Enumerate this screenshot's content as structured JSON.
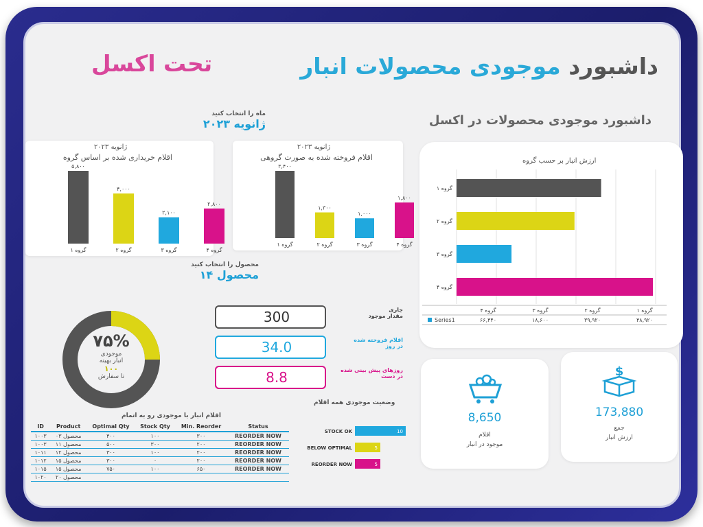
{
  "header": {
    "title_part1": "داشبورد",
    "title_part2": "موجودی محصولات انبار",
    "subtitle": "تحت اکسل",
    "right_heading": "داشبورد موجودی محصولات در اکسل"
  },
  "month_select": {
    "label": "ماه را انتخاب کنید",
    "value": "ژانویه ۲۰۲۳"
  },
  "product_select": {
    "label": "محصول را انتخاب کنید",
    "value": "محصول ۱۴"
  },
  "colors": {
    "dark": "#545454",
    "yellow": "#dcd515",
    "blue": "#20a8de",
    "pink": "#d8128a",
    "accent": "#1ea0d6"
  },
  "chart_data": [
    {
      "type": "bar",
      "title": "ژانویه ۲۰۲۳",
      "subtitle": "اقلام خریداری شده بر اساس گروه",
      "categories": [
        "گروه ۱",
        "گروه ۲",
        "گروه ۳",
        "گروه ۴"
      ],
      "values": [
        5800,
        4000,
        2100,
        2800
      ],
      "value_labels": [
        "۵,۸۰۰",
        "۴,۰۰۰",
        "۲,۱۰۰",
        "۲,۸۰۰"
      ]
    },
    {
      "type": "bar",
      "title": "ژانویه ۲۰۲۳",
      "subtitle": "اقلام فروخته شده به صورت گروهی",
      "categories": [
        "گروه ۱",
        "گروه ۲",
        "گروه ۳",
        "گروه ۴"
      ],
      "values": [
        3400,
        1300,
        1000,
        1800
      ],
      "value_labels": [
        "۳,۴۰۰",
        "۱,۳۰۰",
        "۱,۰۰۰",
        "۱,۸۰۰"
      ]
    },
    {
      "type": "bar",
      "orientation": "horizontal",
      "title": "ارزش انبار بر حسب گروه",
      "categories": [
        "گروه ۱",
        "گروه ۲",
        "گروه ۳",
        "گروه ۴"
      ],
      "values": [
        48920,
        39920,
        18600,
        66440
      ],
      "series_name": "Series1",
      "table_values": [
        "۴۸,۹۲۰",
        "۳۹,۹۲۰",
        "۱۸,۶۰۰",
        "۶۶,۴۴۰"
      ],
      "table_headers": [
        "گروه ۴",
        "گروه ۳",
        "گروه ۲",
        "گروه ۱"
      ]
    },
    {
      "type": "bar",
      "orientation": "horizontal",
      "title": "وضعیت موجودی همه اقلام",
      "categories": [
        "STOCK OK",
        "BELOW OPTIMAL",
        "REORDER NOW"
      ],
      "values": [
        10,
        5,
        5
      ]
    }
  ],
  "donut": {
    "percent": 0.75,
    "percent_text": "۷۵%",
    "label1": "موجودی",
    "label2": "انبار بهینه",
    "count": "۱۰۰",
    "count_label": "تا سفارش"
  },
  "metrics": [
    {
      "value": "300",
      "label": "جاری\nمقدار موجود",
      "color": "#545454"
    },
    {
      "value": "34.0",
      "label": "اقلام فروخته شده\nدر روز",
      "color": "#20a8de"
    },
    {
      "value": "8.8",
      "label": "روزهای پیش بینی شده\nدر دست",
      "color": "#d8128a"
    }
  ],
  "table": {
    "title": "اقلام انبار با موجودی رو به اتمام",
    "headers": [
      "ID",
      "Product",
      "Optimal Qty",
      "Stock Qty",
      "Min. Reorder",
      "Status"
    ],
    "rows": [
      [
        "۱۰۰۳",
        "محصول ۰۳",
        "۴۰۰",
        "۱۰۰",
        "۳۰۰",
        "REORDER NOW"
      ],
      [
        "۱۰۰۳",
        "محصول ۱۱",
        "۵۰۰",
        "۳۰۰",
        "۲۰۰",
        "REORDER NOW"
      ],
      [
        "۱۰۱۱",
        "محصول ۱۲",
        "۳۰۰",
        "۱۰۰",
        "۲۰۰",
        "REORDER NOW"
      ],
      [
        "۱۰۱۲",
        "محصول ۱۵",
        "۳۰۰",
        "۰",
        "۲۰۰",
        "REORDER NOW"
      ],
      [
        "۱۰۱۵",
        "محصول ۱۵",
        "۷۵۰",
        "۱۰۰",
        "۶۵۰",
        "REORDER NOW"
      ],
      [
        "۱۰۲۰",
        "محصول ۲۰",
        "",
        "",
        "",
        ""
      ]
    ]
  },
  "kpis": [
    {
      "value": "8,650",
      "label1": "اقلام",
      "label2": "موجود در انبار",
      "icon": "mine-cart-icon"
    },
    {
      "value": "173,880",
      "label1": "جمع",
      "label2": "ارزش انبار",
      "icon": "money-box-icon"
    }
  ]
}
